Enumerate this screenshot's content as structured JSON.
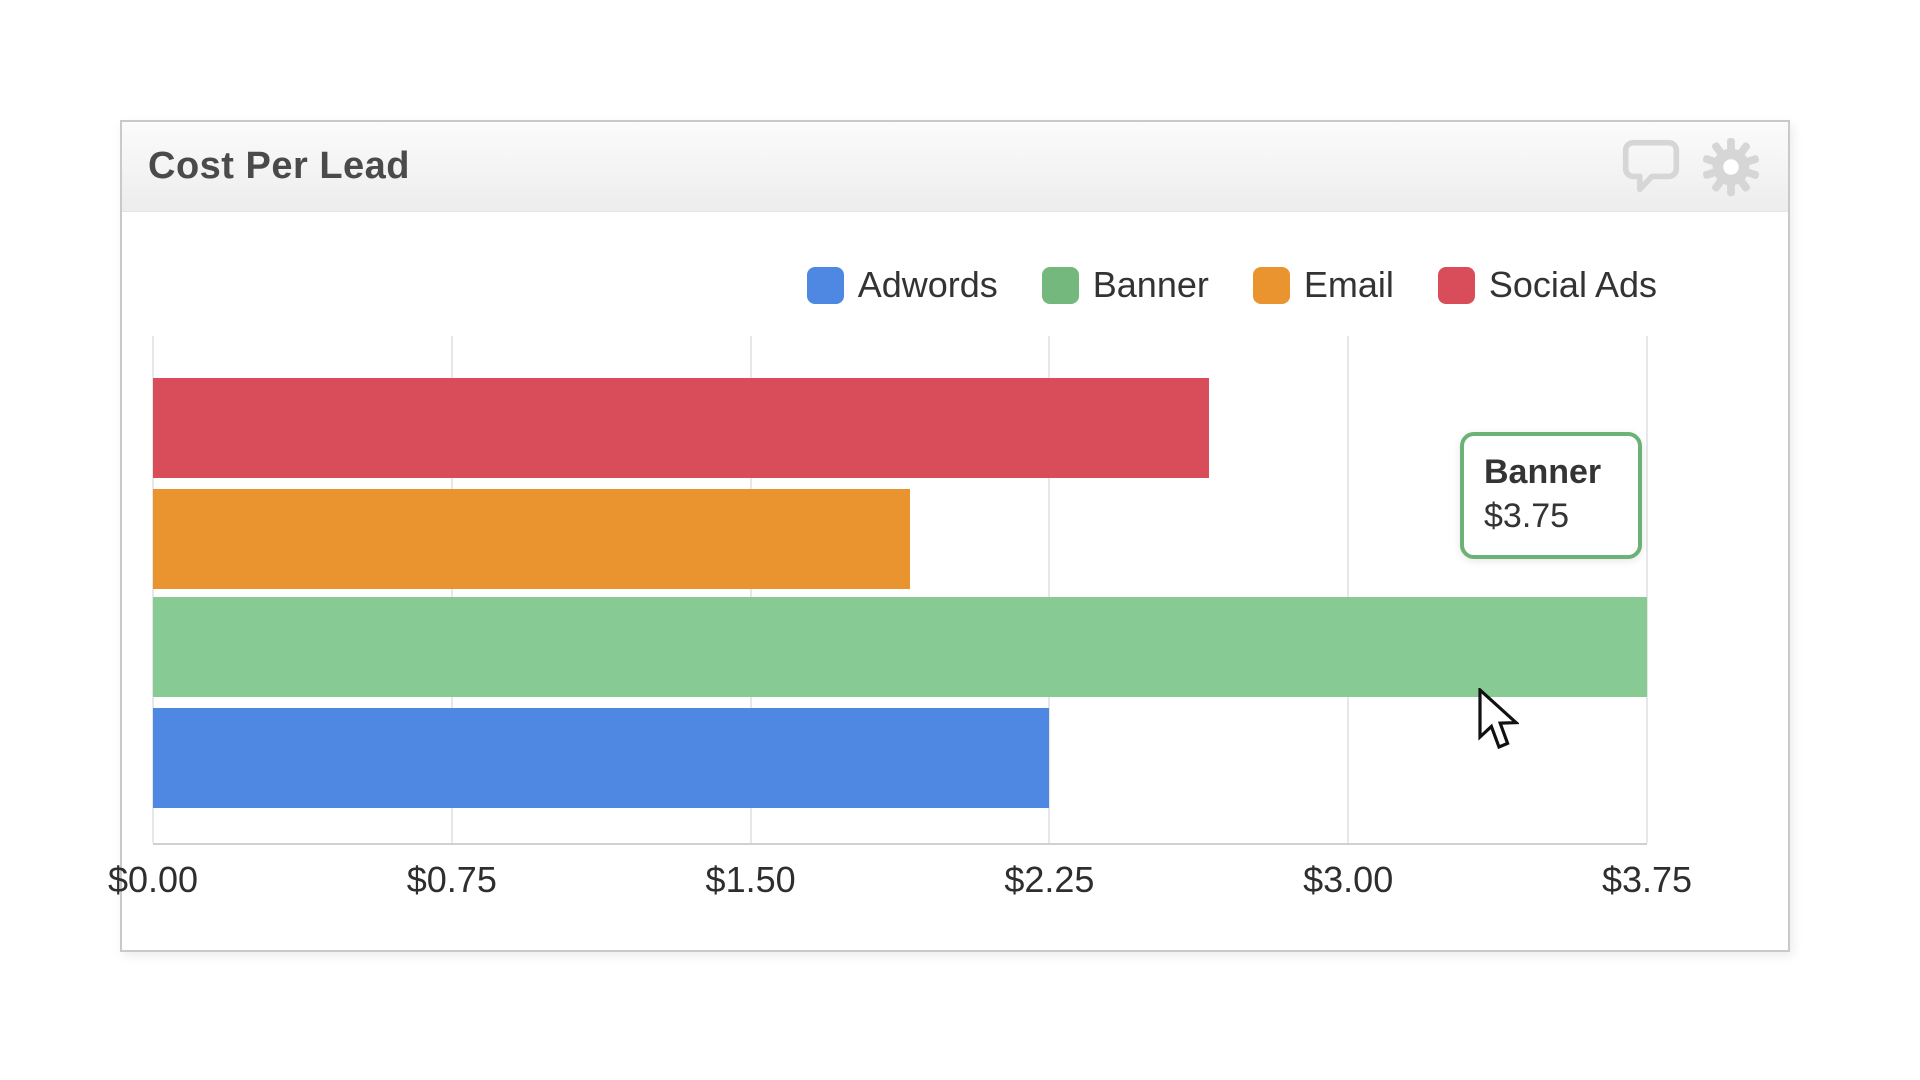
{
  "widget": {
    "title": "Cost Per Lead",
    "header_icons": [
      {
        "name": "comment-icon"
      },
      {
        "name": "gear-icon"
      }
    ]
  },
  "legend": {
    "items": [
      {
        "label": "Adwords",
        "color": "#4e88e2"
      },
      {
        "label": "Banner",
        "color": "#74b87e"
      },
      {
        "label": "Email",
        "color": "#ea9430"
      },
      {
        "label": "Social Ads",
        "color": "#d94d5a"
      }
    ]
  },
  "chart_data": {
    "type": "bar",
    "orientation": "horizontal",
    "title": "Cost Per Lead",
    "xlabel": "",
    "ylabel": "",
    "xlim": [
      0,
      3.75
    ],
    "grid": true,
    "legend_position": "top-right",
    "categories": [
      "Adwords",
      "Banner",
      "Email",
      "Social Ads"
    ],
    "values": [
      2.25,
      3.75,
      1.9,
      2.65
    ],
    "x_ticks": [
      "$0.00",
      "$0.75",
      "$1.50",
      "$2.25",
      "$3.00",
      "$3.75"
    ],
    "bars_top_to_bottom": [
      {
        "name": "Social Ads",
        "value": 2.65,
        "fill": "#d94d5a",
        "state": "normal"
      },
      {
        "name": "Email",
        "value": 1.9,
        "fill": "#ea9430",
        "state": "normal"
      },
      {
        "name": "Banner",
        "value": 3.75,
        "fill": "#87ca93",
        "state": "hovered"
      },
      {
        "name": "Adwords",
        "value": 2.25,
        "fill": "#4e88e2",
        "state": "normal"
      }
    ]
  },
  "tooltip": {
    "title": "Banner",
    "value": "$3.75",
    "border_color": "#6cb176"
  }
}
